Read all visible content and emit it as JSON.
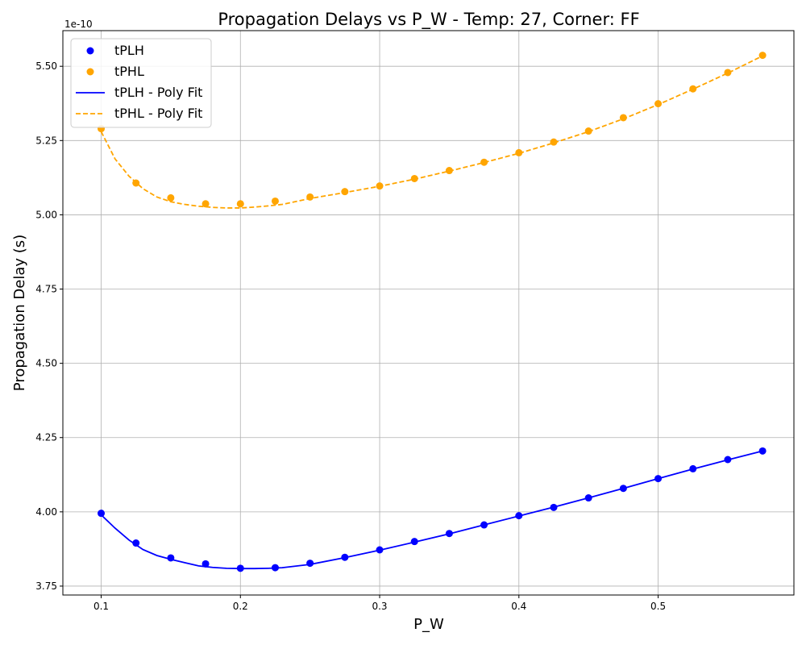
{
  "chart_data": {
    "type": "line",
    "title": "Propagation Delays vs P_W - Temp: 27, Corner: FF",
    "xlabel": "P_W",
    "ylabel": "Propagation Delay (s)",
    "y_offset_label": "1e-10",
    "y_scale_factor": 1e-10,
    "xlim": [
      0.0725,
      0.5975
    ],
    "ylim": [
      3.72,
      5.62
    ],
    "x_ticks": [
      0.1,
      0.2,
      0.3,
      0.4,
      0.5
    ],
    "x_tick_labels": [
      "0.1",
      "0.2",
      "0.3",
      "0.4",
      "0.5"
    ],
    "y_ticks": [
      3.75,
      4.0,
      4.25,
      4.5,
      4.75,
      5.0,
      5.25,
      5.5
    ],
    "y_tick_labels": [
      "3.75",
      "4.00",
      "4.25",
      "4.50",
      "4.75",
      "5.00",
      "5.25",
      "5.50"
    ],
    "grid": true,
    "legend_position": "top-left",
    "x": [
      0.1,
      0.125,
      0.15,
      0.175,
      0.2,
      0.225,
      0.25,
      0.275,
      0.3,
      0.325,
      0.35,
      0.375,
      0.4,
      0.425,
      0.45,
      0.475,
      0.5,
      0.525,
      0.55,
      0.575
    ],
    "series": [
      {
        "name": "tPLH",
        "kind": "scatter",
        "color": "#0000ff",
        "values": [
          3.995,
          3.895,
          3.845,
          3.825,
          3.81,
          3.812,
          3.827,
          3.847,
          3.872,
          3.9,
          3.927,
          3.956,
          3.987,
          4.015,
          4.047,
          4.079,
          4.112,
          4.145,
          4.176,
          4.205
        ]
      },
      {
        "name": "tPHL",
        "kind": "scatter",
        "color": "#ffa500",
        "values": [
          5.29,
          5.107,
          5.057,
          5.037,
          5.037,
          5.046,
          5.06,
          5.078,
          5.097,
          5.122,
          5.149,
          5.177,
          5.209,
          5.245,
          5.282,
          5.327,
          5.374,
          5.424,
          5.479,
          5.537
        ]
      },
      {
        "name": "tPLH - Poly Fit",
        "kind": "line",
        "dash": "solid",
        "color": "#0000ff",
        "x": [
          0.1,
          0.11,
          0.12,
          0.13,
          0.14,
          0.15,
          0.16,
          0.17,
          0.18,
          0.19,
          0.2,
          0.21,
          0.22,
          0.23,
          0.25,
          0.275,
          0.3,
          0.325,
          0.35,
          0.375,
          0.4,
          0.425,
          0.45,
          0.475,
          0.5,
          0.525,
          0.55,
          0.575
        ],
        "values": [
          3.99,
          3.945,
          3.905,
          3.873,
          3.853,
          3.84,
          3.829,
          3.818,
          3.813,
          3.81,
          3.809,
          3.809,
          3.81,
          3.812,
          3.823,
          3.846,
          3.871,
          3.898,
          3.926,
          3.956,
          3.986,
          4.016,
          4.047,
          4.079,
          4.112,
          4.144,
          4.175,
          4.205
        ]
      },
      {
        "name": "tPHL - Poly Fit",
        "kind": "line",
        "dash": "dashed",
        "color": "#ffa500",
        "x": [
          0.1,
          0.11,
          0.12,
          0.13,
          0.14,
          0.15,
          0.16,
          0.17,
          0.18,
          0.19,
          0.2,
          0.21,
          0.22,
          0.23,
          0.25,
          0.275,
          0.3,
          0.325,
          0.35,
          0.375,
          0.4,
          0.425,
          0.45,
          0.475,
          0.5,
          0.525,
          0.55,
          0.575
        ],
        "values": [
          5.28,
          5.188,
          5.13,
          5.088,
          5.06,
          5.044,
          5.035,
          5.029,
          5.025,
          5.023,
          5.023,
          5.026,
          5.03,
          5.035,
          5.055,
          5.075,
          5.096,
          5.12,
          5.147,
          5.176,
          5.207,
          5.242,
          5.28,
          5.323,
          5.371,
          5.423,
          5.477,
          5.535
        ]
      }
    ]
  }
}
